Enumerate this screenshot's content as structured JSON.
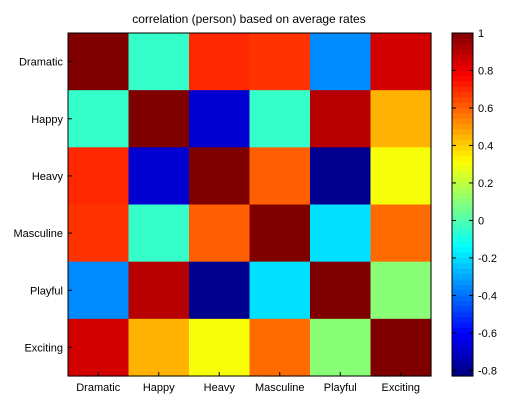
{
  "chart_data": {
    "type": "heatmap",
    "title": "correlation (person) based on average rates",
    "xlabel": "",
    "ylabel": "",
    "categories": [
      "Dramatic",
      "Happy",
      "Heavy",
      "Masculine",
      "Playful",
      "Exciting"
    ],
    "rows": [
      "Dramatic",
      "Happy",
      "Heavy",
      "Masculine",
      "Playful",
      "Exciting"
    ],
    "values": [
      [
        1.0,
        -0.05,
        0.7,
        0.68,
        -0.35,
        0.85
      ],
      [
        -0.05,
        1.0,
        -0.68,
        -0.05,
        0.9,
        0.45
      ],
      [
        0.7,
        -0.68,
        1.0,
        0.6,
        -0.8,
        0.3
      ],
      [
        0.68,
        -0.05,
        0.6,
        1.0,
        -0.2,
        0.58
      ],
      [
        -0.35,
        0.9,
        -0.8,
        -0.2,
        1.0,
        0.1
      ],
      [
        0.85,
        0.45,
        0.3,
        0.58,
        0.1,
        1.0
      ]
    ],
    "colorbar": {
      "min": -0.83,
      "max": 1.0,
      "ticks": [
        1,
        0.8,
        0.6,
        0.4,
        0.2,
        0,
        -0.2,
        -0.4,
        -0.6,
        -0.8
      ],
      "tick_labels": [
        "1",
        "0.8",
        "0.6",
        "0.4",
        "0.2",
        "0",
        "-0.2",
        "-0.4",
        "-0.6",
        "-0.8"
      ],
      "colormap": "jet",
      "position": "right"
    },
    "grid": false
  }
}
